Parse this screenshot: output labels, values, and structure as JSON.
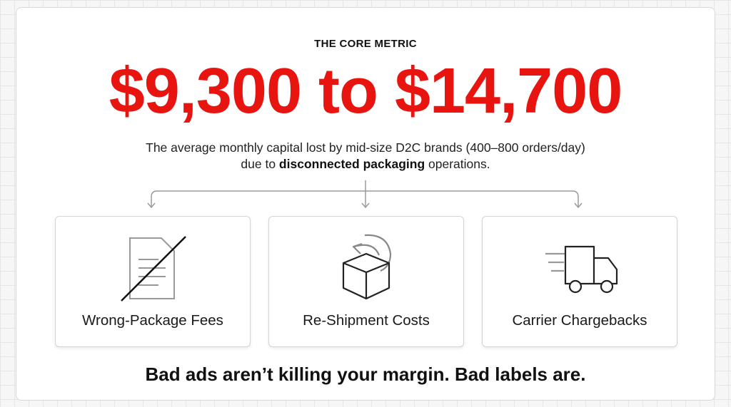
{
  "eyebrow": "THE CORE METRIC",
  "headline": "$9,300 to $14,700",
  "description": {
    "line1": "The average monthly capital lost by mid-size D2C brands (400–800 orders/day)",
    "line2_before": "due to",
    "line2_bold": "disconnected packaging",
    "line2_after": "operations."
  },
  "cards": [
    {
      "label": "Wrong-Package Fees"
    },
    {
      "label": "Re-Shipment Costs"
    },
    {
      "label": "Carrier Chargebacks"
    }
  ],
  "tagline": "Bad ads aren’t killing your margin. Bad labels are."
}
